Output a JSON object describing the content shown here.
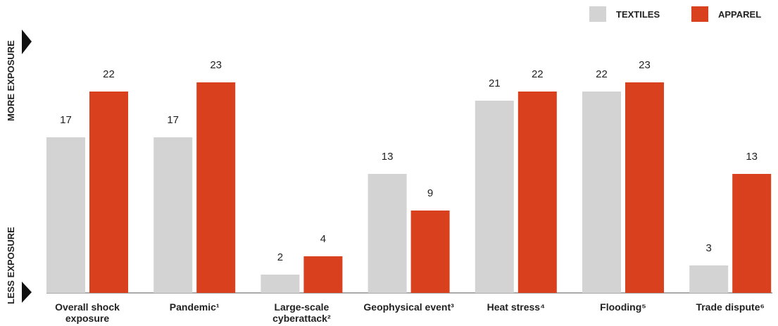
{
  "chart_data": {
    "type": "bar",
    "categories": [
      "Overall shock exposure",
      "Pandemic¹",
      "Large-scale cyberattack²",
      "Geophysical event³",
      "Heat stress⁴",
      "Flooding⁵",
      "Trade dispute⁶"
    ],
    "series": [
      {
        "name": "TEXTILES",
        "color": "#d3d3d3",
        "values": [
          17,
          17,
          2,
          13,
          21,
          22,
          3
        ]
      },
      {
        "name": "APPAREL",
        "color": "#d9411e",
        "values": [
          22,
          23,
          4,
          9,
          22,
          23,
          13
        ]
      }
    ],
    "ylim": [
      0,
      23
    ],
    "y_axis_labels": {
      "top": "MORE EXPOSURE",
      "bottom": "LESS EXPOSURE"
    },
    "legend": "top-right"
  }
}
